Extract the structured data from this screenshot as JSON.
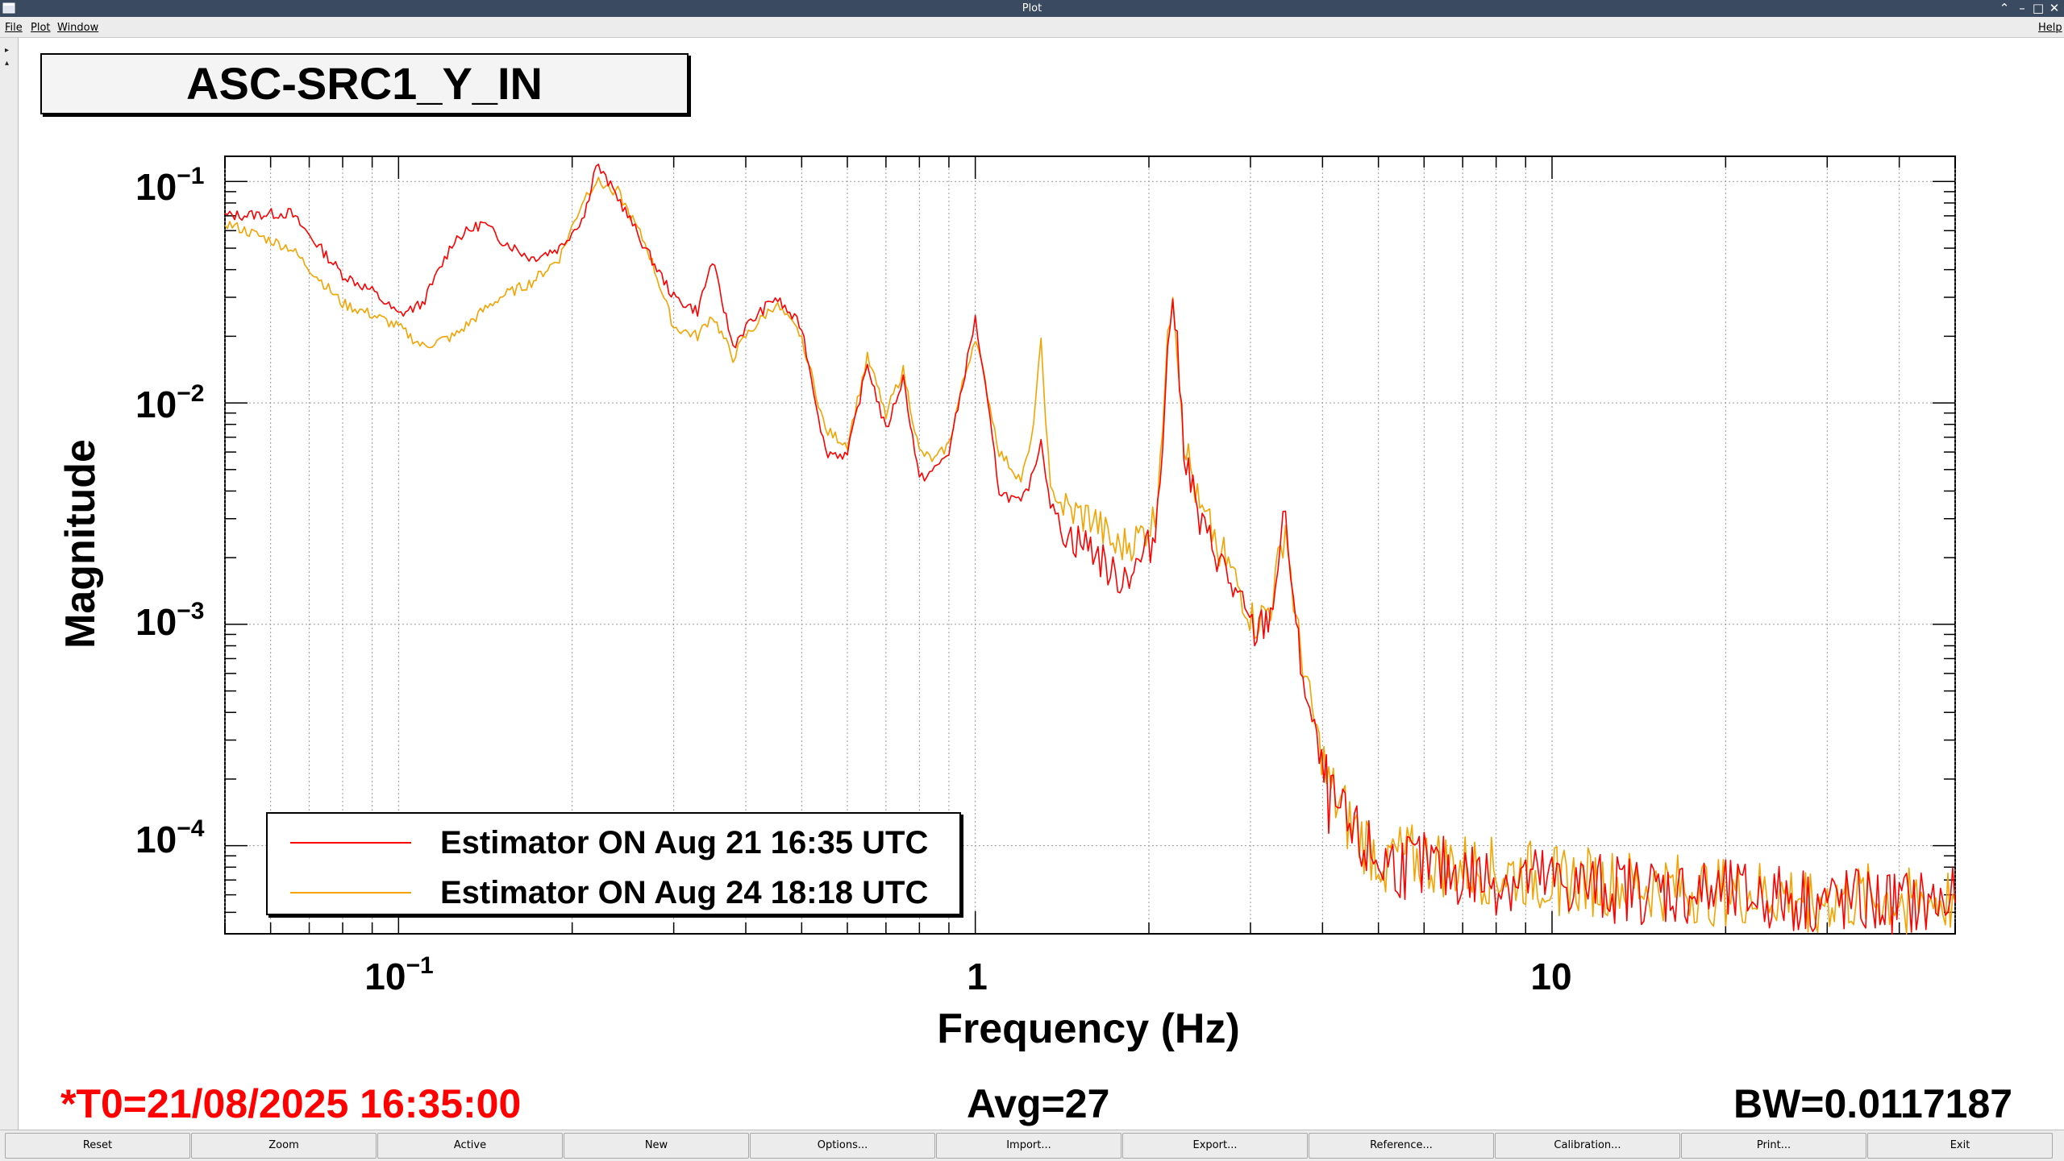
{
  "window": {
    "title": "Plot"
  },
  "menu": {
    "file": "File",
    "plot": "Plot",
    "window": "Window",
    "help": "Help"
  },
  "plot": {
    "title": "ASC-SRC1_Y_IN",
    "ylabel": "Magnitude",
    "xlabel": "Frequency (Hz)",
    "yticks": [
      {
        "base": "10",
        "exp": "−1"
      },
      {
        "base": "10",
        "exp": "−2"
      },
      {
        "base": "10",
        "exp": "−3"
      },
      {
        "base": "10",
        "exp": "−4"
      }
    ],
    "xticks": [
      {
        "base": "10",
        "exp": "−1"
      },
      {
        "base": "1",
        "exp": ""
      },
      {
        "base": "10",
        "exp": ""
      }
    ],
    "t0": "*T0=21/08/2025 16:35:00",
    "avg": "Avg=27",
    "bw": "BW=0.0117187",
    "t0_color": "#ff0000",
    "legend": [
      {
        "label": "Estimator ON Aug 21 16:35 UTC",
        "color": "#ff0000"
      },
      {
        "label": "Estimator ON Aug 24 18:18 UTC",
        "color": "#f5a300"
      }
    ]
  },
  "chart_data": {
    "type": "line",
    "title": "ASC-SRC1_Y_IN",
    "xlabel": "Frequency (Hz)",
    "ylabel": "Magnitude",
    "xscale": "log",
    "yscale": "log",
    "xlim": [
      0.05,
      50
    ],
    "ylim": [
      4e-05,
      0.13
    ],
    "grid": true,
    "legend_position": "bottom-left",
    "series": [
      {
        "name": "Estimator ON Aug 21 16:35 UTC",
        "color": "#ff0000",
        "x": [
          0.05,
          0.065,
          0.08,
          0.09,
          0.1,
          0.11,
          0.125,
          0.14,
          0.15,
          0.17,
          0.19,
          0.21,
          0.22,
          0.24,
          0.27,
          0.3,
          0.33,
          0.35,
          0.38,
          0.4,
          0.45,
          0.5,
          0.55,
          0.6,
          0.65,
          0.7,
          0.75,
          0.8,
          0.85,
          0.9,
          0.95,
          1.0,
          1.05,
          1.1,
          1.2,
          1.25,
          1.3,
          1.35,
          1.45,
          1.6,
          1.75,
          1.9,
          2.05,
          2.2,
          2.3,
          2.45,
          2.6,
          2.85,
          3.05,
          3.25,
          3.45,
          3.6,
          3.8,
          4.1,
          4.5,
          5,
          6,
          7,
          8,
          9,
          10,
          12,
          15,
          20,
          25,
          30,
          40,
          50
        ],
        "y": [
          0.07,
          0.072,
          0.038,
          0.032,
          0.025,
          0.028,
          0.055,
          0.065,
          0.055,
          0.045,
          0.05,
          0.07,
          0.12,
          0.085,
          0.048,
          0.03,
          0.026,
          0.044,
          0.018,
          0.022,
          0.03,
          0.022,
          0.006,
          0.0058,
          0.015,
          0.0075,
          0.013,
          0.0045,
          0.005,
          0.006,
          0.012,
          0.024,
          0.01,
          0.004,
          0.0035,
          0.0045,
          0.0068,
          0.0035,
          0.0025,
          0.0022,
          0.0016,
          0.0018,
          0.0025,
          0.033,
          0.0065,
          0.0028,
          0.0022,
          0.0013,
          0.0009,
          0.0011,
          0.0032,
          0.0009,
          0.0004,
          0.00016,
          0.00011,
          8.5e-05,
          8e-05,
          7.5e-05,
          7e-05,
          7.2e-05,
          6.8e-05,
          6.5e-05,
          6.3e-05,
          6e-05,
          5.8e-05,
          5.6e-05,
          5.5e-05,
          5.5e-05
        ]
      },
      {
        "name": "Estimator ON Aug 24 18:18 UTC",
        "color": "#f5a300",
        "x": [
          0.05,
          0.065,
          0.08,
          0.09,
          0.1,
          0.11,
          0.125,
          0.14,
          0.15,
          0.17,
          0.19,
          0.21,
          0.22,
          0.24,
          0.27,
          0.3,
          0.33,
          0.35,
          0.38,
          0.4,
          0.45,
          0.5,
          0.55,
          0.6,
          0.65,
          0.7,
          0.75,
          0.8,
          0.85,
          0.9,
          0.95,
          1.0,
          1.05,
          1.1,
          1.2,
          1.25,
          1.3,
          1.35,
          1.45,
          1.6,
          1.75,
          1.9,
          2.05,
          2.2,
          2.3,
          2.45,
          2.6,
          2.85,
          3.05,
          3.25,
          3.45,
          3.6,
          3.8,
          4.1,
          4.5,
          5,
          6,
          7,
          8,
          9,
          10,
          12,
          15,
          20,
          25,
          30,
          40,
          50
        ],
        "y": [
          0.065,
          0.05,
          0.028,
          0.025,
          0.022,
          0.018,
          0.02,
          0.026,
          0.03,
          0.035,
          0.045,
          0.085,
          0.1,
          0.09,
          0.05,
          0.022,
          0.02,
          0.025,
          0.016,
          0.02,
          0.028,
          0.02,
          0.0075,
          0.0065,
          0.016,
          0.009,
          0.014,
          0.006,
          0.0055,
          0.0065,
          0.012,
          0.02,
          0.011,
          0.006,
          0.0045,
          0.0065,
          0.0185,
          0.004,
          0.0032,
          0.003,
          0.0022,
          0.0024,
          0.003,
          0.035,
          0.007,
          0.0032,
          0.0025,
          0.0015,
          0.001,
          0.0012,
          0.0028,
          0.001,
          0.00045,
          0.00018,
          0.00012,
          9e-05,
          8.5e-05,
          8e-05,
          7.5e-05,
          7.4e-05,
          7e-05,
          6.8e-05,
          6.5e-05,
          6.2e-05,
          6e-05,
          5.8e-05,
          5.7e-05,
          5.6e-05
        ]
      }
    ]
  },
  "buttons": [
    "Reset",
    "Zoom",
    "Active",
    "New",
    "Options...",
    "Import...",
    "Export...",
    "Reference...",
    "Calibration...",
    "Print...",
    "Exit"
  ]
}
